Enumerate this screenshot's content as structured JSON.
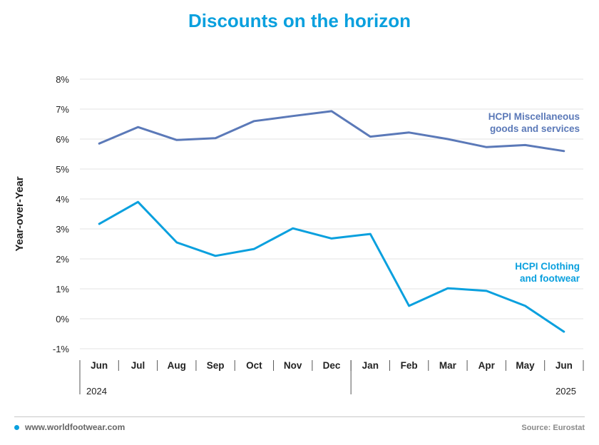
{
  "title": "Discounts on the horizon",
  "footer": {
    "site": "www.worldfootwear.com",
    "source": "Source: Eurostat"
  },
  "colors": {
    "title": "#0aa0de",
    "clothing": "#0aa0de",
    "misc": "#5b79b8"
  },
  "icons": {
    "footer_bullet": "bullet-dot-icon"
  },
  "chart_data": {
    "type": "line",
    "title": "Discounts on the horizon",
    "ylabel": "Year-over-Year",
    "xlabel": "",
    "ylim": [
      -1,
      8
    ],
    "yticks": [
      -1,
      0,
      1,
      2,
      3,
      4,
      5,
      6,
      7,
      8
    ],
    "ytick_labels": [
      "-1%",
      "0%",
      "1%",
      "2%",
      "3%",
      "4%",
      "5%",
      "6%",
      "7%",
      "8%"
    ],
    "categories": [
      "Jun",
      "Jul",
      "Aug",
      "Sep",
      "Oct",
      "Nov",
      "Dec",
      "Jan",
      "Feb",
      "Mar",
      "Apr",
      "May",
      "Jun"
    ],
    "year_labels": [
      {
        "label": "2024",
        "start_index": 0
      },
      {
        "label": "2025",
        "start_index": 7
      }
    ],
    "grid": true,
    "series": [
      {
        "name": "HCPI Miscellaneous goods and services",
        "label_lines": [
          "HCPI Miscellaneous",
          "goods and services"
        ],
        "color": "#5b79b8",
        "values": [
          5.85,
          6.4,
          5.97,
          6.03,
          6.6,
          6.77,
          6.93,
          6.08,
          6.22,
          6.0,
          5.73,
          5.8,
          5.6
        ]
      },
      {
        "name": "HCPI Clothing and footwear",
        "label_lines": [
          "HCPI Clothing",
          "and footwear"
        ],
        "color": "#0aa0de",
        "values": [
          3.17,
          3.9,
          2.55,
          2.1,
          2.33,
          3.02,
          2.68,
          2.83,
          0.43,
          1.02,
          0.93,
          0.43,
          -0.43
        ]
      }
    ]
  }
}
